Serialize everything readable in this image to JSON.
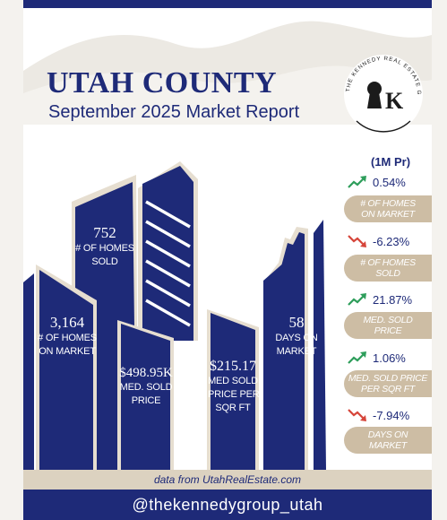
{
  "header": {
    "title": "UTAH COUNTY",
    "subtitle": "September 2025 Market Report"
  },
  "logo": {
    "ring_text": "THE KENNEDY REAL ESTATE GROUP",
    "mark": "K",
    "icon": "keyhole-k-logo-icon"
  },
  "buildings": {
    "homes_sold": {
      "value": "752",
      "label_line1": "# OF HOMES",
      "label_line2": "SOLD"
    },
    "homes_on_market": {
      "value": "3,164",
      "label_line1": "# OF HOMES",
      "label_line2": "ON MARKET"
    },
    "median_price": {
      "value": "$498.95K",
      "label_line1": "MED. SOLD",
      "label_line2": "PRICE"
    },
    "price_per_sqft": {
      "value": "$215.17",
      "label_line1": "MED SOLD",
      "label_line2": "PRICE PER",
      "label_line3": "SQR FT"
    },
    "days_on_market": {
      "value": "58",
      "label_line1": "DAYS ON",
      "label_line2": "MARKET"
    }
  },
  "changes": {
    "header": "(1M Pr)",
    "items": [
      {
        "pct": "0.54%",
        "direction": "up",
        "label_line1": "# OF HOMES",
        "label_line2": "ON MARKET"
      },
      {
        "pct": "-6.23%",
        "direction": "down",
        "label_line1": "# OF HOMES",
        "label_line2": "SOLD"
      },
      {
        "pct": "21.87%",
        "direction": "up",
        "label_line1": "MED. SOLD",
        "label_line2": "PRICE"
      },
      {
        "pct": "1.06%",
        "direction": "up",
        "label_line1": "MED. SOLD PRICE",
        "label_line2": "PER SQR FT"
      },
      {
        "pct": "-7.94%",
        "direction": "down",
        "label_line1": "DAYS ON",
        "label_line2": "MARKET"
      }
    ]
  },
  "footer": {
    "source": "data from UtahRealEstate.com",
    "handle": "@thekennedygroup_utah"
  },
  "colors": {
    "navy": "#1e2a78",
    "beige": "#cdbda4",
    "up_arrow": "#2e9e5b",
    "down_arrow": "#d6453a"
  }
}
